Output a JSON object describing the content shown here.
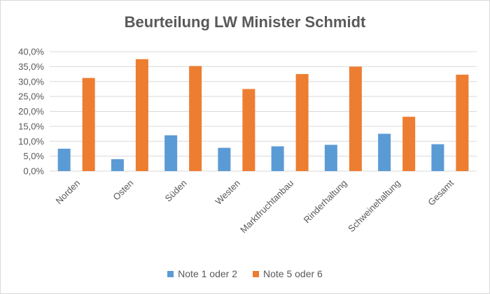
{
  "colors": {
    "series1": "#5b9bd5",
    "series2": "#ed7d31",
    "gridline": "#d9d9d9",
    "text": "#595959"
  },
  "chart_data": {
    "type": "bar",
    "title": "Beurteilung LW Minister Schmidt",
    "xlabel": "",
    "ylabel": "",
    "ylim": [
      0,
      40
    ],
    "yticks": [
      "0,0%",
      "5,0%",
      "10,0%",
      "15,0%",
      "20,0%",
      "25,0%",
      "30,0%",
      "35,0%",
      "40,0%"
    ],
    "grid": true,
    "legend_position": "bottom",
    "categories": [
      "Norden",
      "Osten",
      "Süden",
      "Westen",
      "Marktfruchtanbau",
      "Rinderhaltung",
      "Schweinehaltung",
      "Gesamt"
    ],
    "series": [
      {
        "name": "Note 1 oder 2",
        "values": [
          7.5,
          4.0,
          12.0,
          7.8,
          8.3,
          8.8,
          12.5,
          9.0
        ]
      },
      {
        "name": "Note 5 oder 6",
        "values": [
          31.2,
          37.5,
          35.2,
          27.5,
          32.5,
          35.0,
          18.2,
          32.3
        ]
      }
    ]
  }
}
